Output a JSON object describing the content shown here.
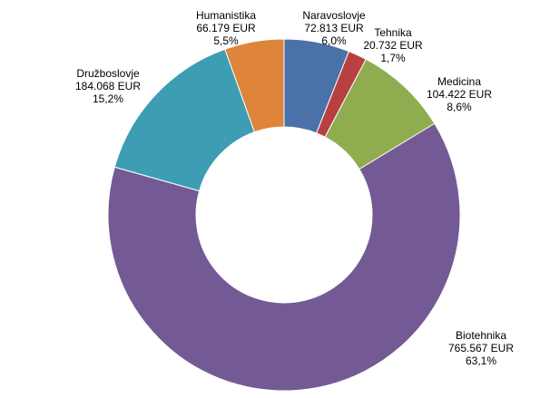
{
  "chart_data": {
    "type": "pie",
    "variant": "donut",
    "title": "",
    "currency": "EUR",
    "slices": [
      {
        "name": "Naravoslovje",
        "amount": 72813,
        "amount_label": "72.813 EUR",
        "percent": 6.0,
        "percent_label": "6,0%",
        "color": "#4a72a8"
      },
      {
        "name": "Tehnika",
        "amount": 20732,
        "amount_label": "20.732 EUR",
        "percent": 1.7,
        "percent_label": "1,7%",
        "color": "#b94040"
      },
      {
        "name": "Medicina",
        "amount": 104422,
        "amount_label": "104.422 EUR",
        "percent": 8.6,
        "percent_label": "8,6%",
        "color": "#8fad4f"
      },
      {
        "name": "Biotehnika",
        "amount": 765567,
        "amount_label": "765.567 EUR",
        "percent": 63.1,
        "percent_label": "63,1%",
        "color": "#735a94"
      },
      {
        "name": "Družboslovje",
        "amount": 184068,
        "amount_label": "184.068 EUR",
        "percent": 15.2,
        "percent_label": "15,2%",
        "color": "#3d9db3"
      },
      {
        "name": "Humanistika",
        "amount": 66179,
        "amount_label": "66.179 EUR",
        "percent": 5.5,
        "percent_label": "5,5%",
        "color": "#de843b"
      }
    ],
    "start_angle_deg": 0,
    "direction": "clockwise",
    "legend": "none",
    "labels": "outside"
  }
}
